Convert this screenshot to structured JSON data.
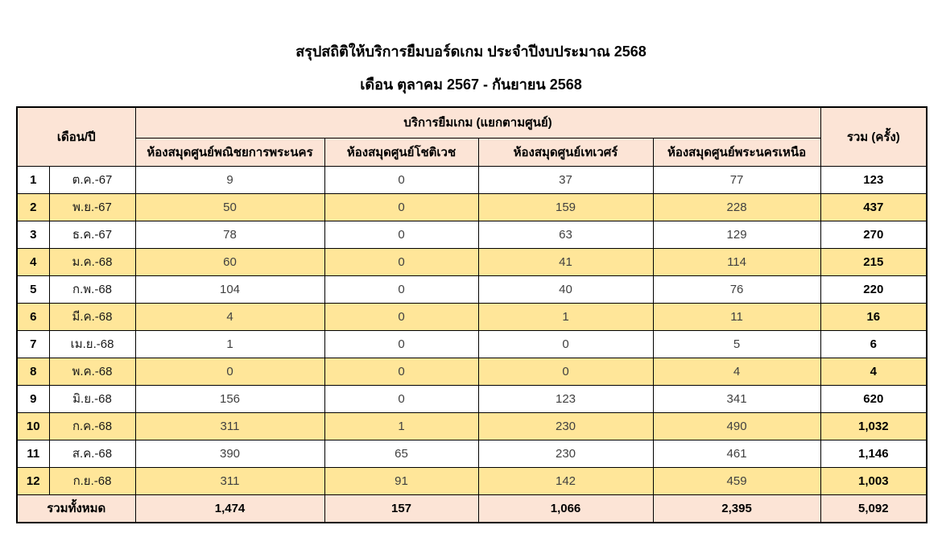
{
  "page": {
    "title": "สรุปสถิติให้บริการยืมบอร์ดเกม ประจำปีงบประมาณ 2568",
    "subtitle": "เดือน ตุลาคม 2567 - กันยายน 2568"
  },
  "colors": {
    "header_bg": "#FCE4D6",
    "row_highlight_bg": "#FFE699",
    "row_bg": "#FFFFFF",
    "footer_bg": "#FCE4D6",
    "border": "#000000",
    "value_text": "#404040"
  },
  "table": {
    "header": {
      "month_year": "เดือน/ปี",
      "group": "บริการยืมเกม (แยกตามศูนย์)",
      "centers": [
        "ห้องสมุดศูนย์พณิชยการพระนคร",
        "ห้องสมุดศูนย์โชติเวช",
        "ห้องสมุดศูนย์เทเวศร์",
        "ห้องสมุดศูนย์พระนครเหนือ"
      ],
      "total": "รวม (ครั้ง)"
    },
    "rows": [
      {
        "no": "1",
        "month": "ต.ค.-67",
        "values": [
          "9",
          "0",
          "37",
          "77"
        ],
        "total": "123"
      },
      {
        "no": "2",
        "month": "พ.ย.-67",
        "values": [
          "50",
          "0",
          "159",
          "228"
        ],
        "total": "437"
      },
      {
        "no": "3",
        "month": "ธ.ค.-67",
        "values": [
          "78",
          "0",
          "63",
          "129"
        ],
        "total": "270"
      },
      {
        "no": "4",
        "month": "ม.ค.-68",
        "values": [
          "60",
          "0",
          "41",
          "114"
        ],
        "total": "215"
      },
      {
        "no": "5",
        "month": "ก.พ.-68",
        "values": [
          "104",
          "0",
          "40",
          "76"
        ],
        "total": "220"
      },
      {
        "no": "6",
        "month": "มี.ค.-68",
        "values": [
          "4",
          "0",
          "1",
          "11"
        ],
        "total": "16"
      },
      {
        "no": "7",
        "month": "เม.ย.-68",
        "values": [
          "1",
          "0",
          "0",
          "5"
        ],
        "total": "6"
      },
      {
        "no": "8",
        "month": "พ.ค.-68",
        "values": [
          "0",
          "0",
          "0",
          "4"
        ],
        "total": "4"
      },
      {
        "no": "9",
        "month": "มิ.ย.-68",
        "values": [
          "156",
          "0",
          "123",
          "341"
        ],
        "total": "620"
      },
      {
        "no": "10",
        "month": "ก.ค.-68",
        "values": [
          "311",
          "1",
          "230",
          "490"
        ],
        "total": "1,032"
      },
      {
        "no": "11",
        "month": "ส.ค.-68",
        "values": [
          "390",
          "65",
          "230",
          "461"
        ],
        "total": "1,146"
      },
      {
        "no": "12",
        "month": "ก.ย.-68",
        "values": [
          "311",
          "91",
          "142",
          "459"
        ],
        "total": "1,003"
      }
    ],
    "footer": {
      "label": "รวมทั้งหมด",
      "values": [
        "1,474",
        "157",
        "1,066",
        "2,395"
      ],
      "total": "5,092"
    }
  }
}
